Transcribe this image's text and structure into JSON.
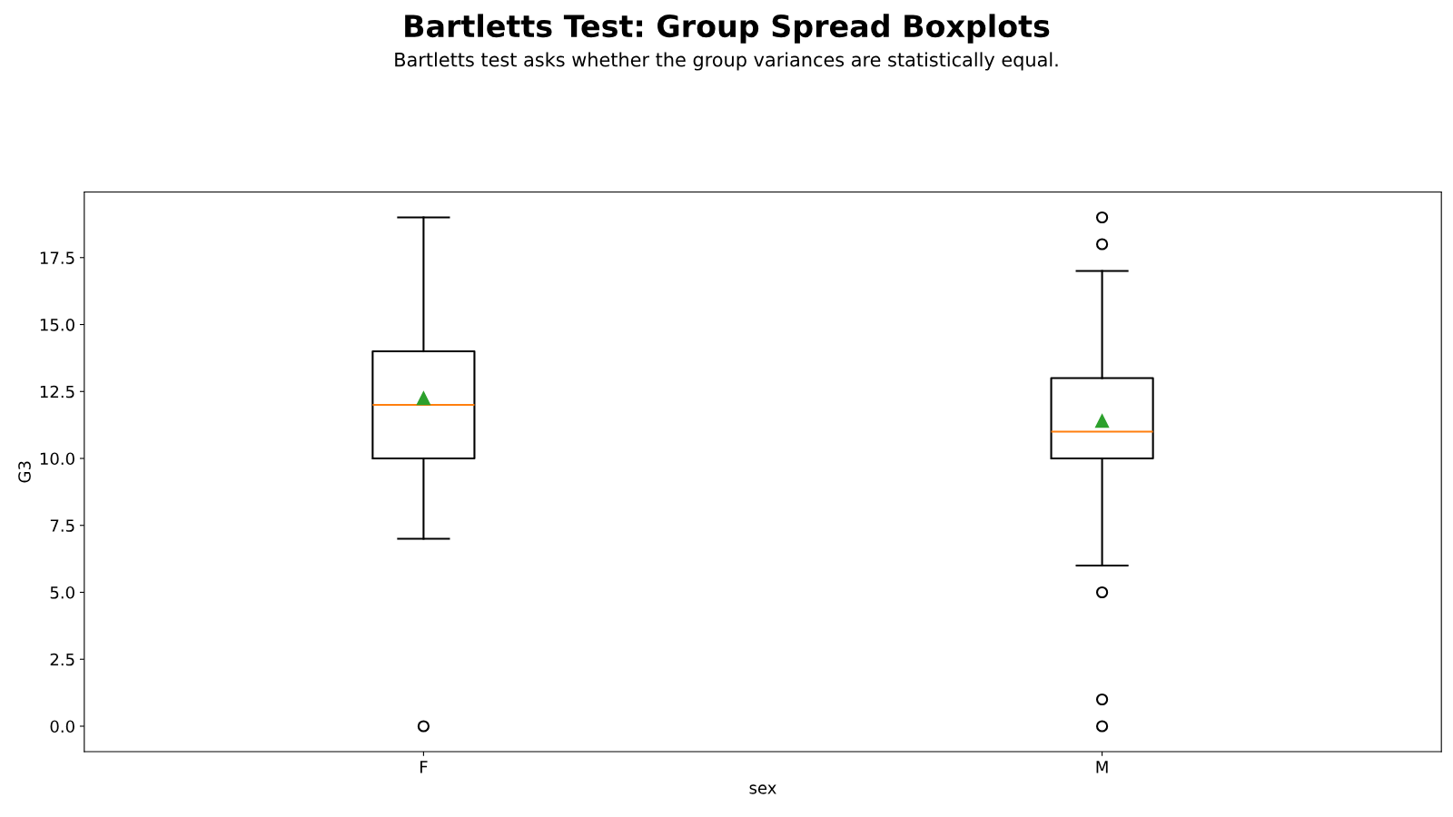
{
  "chart_data": {
    "type": "box",
    "title": "Bartletts Test: Group Spread Boxplots",
    "subtitle": "Bartletts test asks whether the group variances are statistically equal.",
    "xlabel": "sex",
    "ylabel": "G3",
    "categories": [
      "F",
      "M"
    ],
    "boxes": [
      {
        "low": 7,
        "q1": 10,
        "median": 12,
        "q3": 14,
        "high": 19,
        "mean": 12.25,
        "outliers": [
          0
        ]
      },
      {
        "low": 6,
        "q1": 10,
        "median": 11,
        "q3": 13,
        "high": 17,
        "mean": 11.4,
        "outliers": [
          19,
          18,
          5,
          1,
          0
        ]
      }
    ],
    "ylim": [
      -0.95,
      19.95
    ],
    "yticks": [
      {
        "value": 0,
        "label": "0.0"
      },
      {
        "value": 2.5,
        "label": "2.5"
      },
      {
        "value": 5,
        "label": "5.0"
      },
      {
        "value": 7.5,
        "label": "7.5"
      },
      {
        "value": 10,
        "label": "10.0"
      },
      {
        "value": 12.5,
        "label": "12.5"
      },
      {
        "value": 15,
        "label": "15.0"
      },
      {
        "value": 17.5,
        "label": "17.5"
      }
    ],
    "grid": false
  }
}
